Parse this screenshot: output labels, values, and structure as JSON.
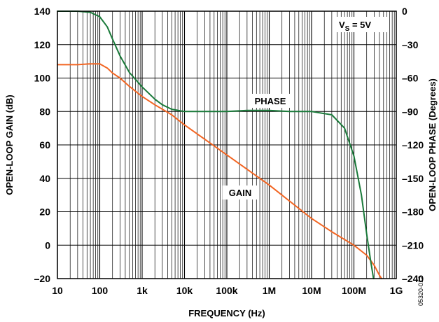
{
  "chart_data": {
    "type": "line",
    "xscale": "log",
    "xlim": [
      10,
      1000000000
    ],
    "xlabel": "FREQUENCY (Hz)",
    "ylabel_left": "OPEN-LOOP GAIN (dB)",
    "ylabel_right": "OPEN-LOOP PHASE (Degrees)",
    "ylim_left": [
      -20,
      140
    ],
    "ylim_right": [
      -240,
      0
    ],
    "x_ticks": [
      {
        "value": 10,
        "label": "10"
      },
      {
        "value": 100,
        "label": "100"
      },
      {
        "value": 1000,
        "label": "1k"
      },
      {
        "value": 10000,
        "label": "10k"
      },
      {
        "value": 100000,
        "label": "100k"
      },
      {
        "value": 1000000,
        "label": "1M"
      },
      {
        "value": 10000000,
        "label": "10M"
      },
      {
        "value": 100000000,
        "label": "100M"
      },
      {
        "value": 1000000000,
        "label": "1G"
      }
    ],
    "y_left_ticks": [
      {
        "value": 140,
        "label": "140"
      },
      {
        "value": 120,
        "label": "120"
      },
      {
        "value": 100,
        "label": "100"
      },
      {
        "value": 80,
        "label": "80"
      },
      {
        "value": 60,
        "label": "60"
      },
      {
        "value": 40,
        "label": "40"
      },
      {
        "value": 20,
        "label": "20"
      },
      {
        "value": 0,
        "label": "0"
      },
      {
        "value": -20,
        "label": "–20"
      }
    ],
    "y_right_ticks": [
      {
        "value": 0,
        "label": "0"
      },
      {
        "value": -30,
        "label": "–30"
      },
      {
        "value": -60,
        "label": "–60"
      },
      {
        "value": -90,
        "label": "–90"
      },
      {
        "value": -120,
        "label": "–120"
      },
      {
        "value": -150,
        "label": "–150"
      },
      {
        "value": -180,
        "label": "–180"
      },
      {
        "value": -210,
        "label": "–210"
      },
      {
        "value": -240,
        "label": "–240"
      }
    ],
    "grid": true,
    "series": [
      {
        "name": "GAIN",
        "axis": "left",
        "color": "#f26522",
        "points": [
          [
            10,
            108
          ],
          [
            30,
            108
          ],
          [
            60,
            108.5
          ],
          [
            100,
            108.5
          ],
          [
            150,
            106
          ],
          [
            200,
            103
          ],
          [
            300,
            100
          ],
          [
            500,
            95
          ],
          [
            1000,
            89
          ],
          [
            2000,
            84
          ],
          [
            5000,
            78
          ],
          [
            10000,
            72
          ],
          [
            100000,
            54
          ],
          [
            1000000,
            36
          ],
          [
            10000000,
            16
          ],
          [
            30000000,
            8
          ],
          [
            100000000,
            0
          ],
          [
            200000000,
            -6
          ],
          [
            300000000,
            -12
          ],
          [
            400000000,
            -18
          ],
          [
            450000000,
            -20
          ]
        ]
      },
      {
        "name": "PHASE",
        "axis": "right",
        "color": "#1a7a3a",
        "points": [
          [
            10,
            0
          ],
          [
            30,
            0
          ],
          [
            60,
            -1
          ],
          [
            100,
            -5
          ],
          [
            150,
            -14
          ],
          [
            200,
            -25
          ],
          [
            300,
            -40
          ],
          [
            500,
            -55
          ],
          [
            1000,
            -68
          ],
          [
            2000,
            -79
          ],
          [
            3000,
            -84
          ],
          [
            5000,
            -88
          ],
          [
            10000,
            -90
          ],
          [
            30000,
            -90
          ],
          [
            100000,
            -90
          ],
          [
            300000,
            -89
          ],
          [
            1000000,
            -89
          ],
          [
            3000000,
            -90
          ],
          [
            10000000,
            -90
          ],
          [
            30000000,
            -93
          ],
          [
            60000000,
            -105
          ],
          [
            100000000,
            -130
          ],
          [
            150000000,
            -165
          ],
          [
            200000000,
            -200
          ],
          [
            250000000,
            -225
          ],
          [
            290000000,
            -240
          ]
        ]
      }
    ],
    "annotations": {
      "phase": "PHASE",
      "gain": "GAIN",
      "vs_main": "V",
      "vs_sub": "S",
      "vs_value": " = 5V"
    },
    "figure_id": "05320-012"
  }
}
